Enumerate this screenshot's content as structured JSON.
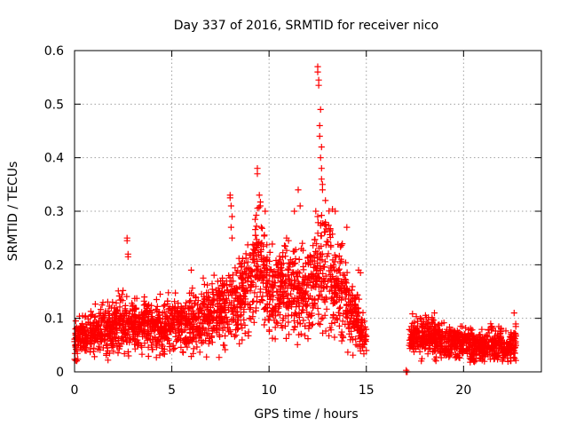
{
  "chart_data": {
    "type": "scatter",
    "title": "Day 337 of 2016, SRMTID for receiver nico",
    "xlabel": "GPS time / hours",
    "ylabel": "SRMTID / TECUs",
    "xlim": [
      0,
      24
    ],
    "ylim": [
      0,
      0.6
    ],
    "xticks": [
      0,
      5,
      10,
      15,
      20
    ],
    "yticks": [
      0,
      0.1,
      0.2,
      0.3,
      0.4,
      0.5,
      0.6
    ],
    "xtick_labels": [
      "0",
      "5",
      "10",
      "15",
      "20"
    ],
    "ytick_labels": [
      "0",
      "0.1",
      "0.2",
      "0.3",
      "0.4",
      "0.5",
      "0.6"
    ],
    "grid": true,
    "marker": "+",
    "color": "#ff0000",
    "series": [
      {
        "name": "SRMTID",
        "trend": [
          [
            0.0,
            0.06
          ],
          [
            1.0,
            0.075
          ],
          [
            2.0,
            0.085
          ],
          [
            3.0,
            0.09
          ],
          [
            4.0,
            0.085
          ],
          [
            5.0,
            0.085
          ],
          [
            6.0,
            0.095
          ],
          [
            7.0,
            0.105
          ],
          [
            8.0,
            0.12
          ],
          [
            9.0,
            0.15
          ],
          [
            9.5,
            0.2
          ],
          [
            10.0,
            0.15
          ],
          [
            11.0,
            0.15
          ],
          [
            12.0,
            0.14
          ],
          [
            12.5,
            0.19
          ],
          [
            13.0,
            0.2
          ],
          [
            13.5,
            0.17
          ],
          [
            14.0,
            0.13
          ],
          [
            14.5,
            0.1
          ],
          [
            15.0,
            0.055
          ],
          [
            17.2,
            0.06
          ],
          [
            18.0,
            0.07
          ],
          [
            19.0,
            0.06
          ],
          [
            20.0,
            0.05
          ],
          [
            21.0,
            0.05
          ],
          [
            22.0,
            0.045
          ],
          [
            22.7,
            0.05
          ]
        ],
        "points": [
          [
            2.7,
            0.25
          ],
          [
            2.7,
            0.245
          ],
          [
            2.75,
            0.22
          ],
          [
            2.75,
            0.215
          ],
          [
            8.0,
            0.33
          ],
          [
            8.0,
            0.325
          ],
          [
            8.05,
            0.31
          ],
          [
            8.1,
            0.29
          ],
          [
            8.05,
            0.27
          ],
          [
            8.1,
            0.25
          ],
          [
            9.4,
            0.38
          ],
          [
            9.4,
            0.37
          ],
          [
            9.5,
            0.33
          ],
          [
            9.55,
            0.31
          ],
          [
            9.6,
            0.27
          ],
          [
            9.8,
            0.3
          ],
          [
            10.9,
            0.25
          ],
          [
            11.0,
            0.245
          ],
          [
            11.5,
            0.34
          ],
          [
            11.6,
            0.31
          ],
          [
            11.3,
            0.3
          ],
          [
            12.5,
            0.57
          ],
          [
            12.5,
            0.56
          ],
          [
            12.55,
            0.545
          ],
          [
            12.55,
            0.535
          ],
          [
            12.65,
            0.49
          ],
          [
            12.6,
            0.46
          ],
          [
            12.6,
            0.44
          ],
          [
            12.7,
            0.42
          ],
          [
            12.65,
            0.4
          ],
          [
            12.7,
            0.38
          ],
          [
            12.7,
            0.36
          ],
          [
            12.75,
            0.35
          ],
          [
            12.75,
            0.34
          ],
          [
            12.4,
            0.3
          ],
          [
            12.5,
            0.29
          ],
          [
            12.9,
            0.32
          ],
          [
            13.4,
            0.3
          ],
          [
            14.0,
            0.27
          ],
          [
            6.0,
            0.19
          ],
          [
            7.6,
            0.17
          ],
          [
            7.6,
            0.175
          ],
          [
            14.6,
            0.19
          ],
          [
            14.7,
            0.185
          ],
          [
            15.0,
            0.04
          ],
          [
            17.05,
            0.0
          ],
          [
            17.05,
            0.003
          ],
          [
            17.1,
            0.0
          ],
          [
            18.5,
            0.11
          ],
          [
            22.6,
            0.11
          ]
        ]
      }
    ]
  }
}
